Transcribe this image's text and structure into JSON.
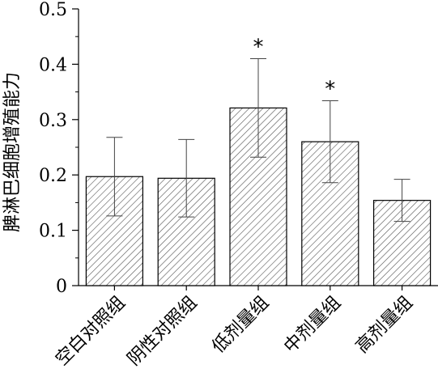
{
  "chart_data": {
    "type": "bar",
    "title": "",
    "xlabel": "",
    "ylabel": "脾淋巴细胞增殖能力",
    "categories": [
      "空白对照组",
      "阴性对照组",
      "低剂量组",
      "中剂量组",
      "高剂量组"
    ],
    "values": [
      0.197,
      0.194,
      0.321,
      0.26,
      0.154
    ],
    "error": [
      0.071,
      0.07,
      0.089,
      0.074,
      0.038
    ],
    "annotations": [
      "",
      "",
      "*",
      "*",
      ""
    ],
    "ylim": [
      0,
      0.5
    ],
    "yticks": [
      "0",
      "0.1",
      "0.2",
      "0.3",
      "0.4",
      "0.5"
    ],
    "ytick_values": [
      0,
      0.1,
      0.2,
      0.3,
      0.4,
      0.5
    ],
    "bar_pattern": "diagonal-hatch",
    "bar_color": "#ffffff",
    "hatch_color": "#555555",
    "grid": false,
    "legend": false
  }
}
